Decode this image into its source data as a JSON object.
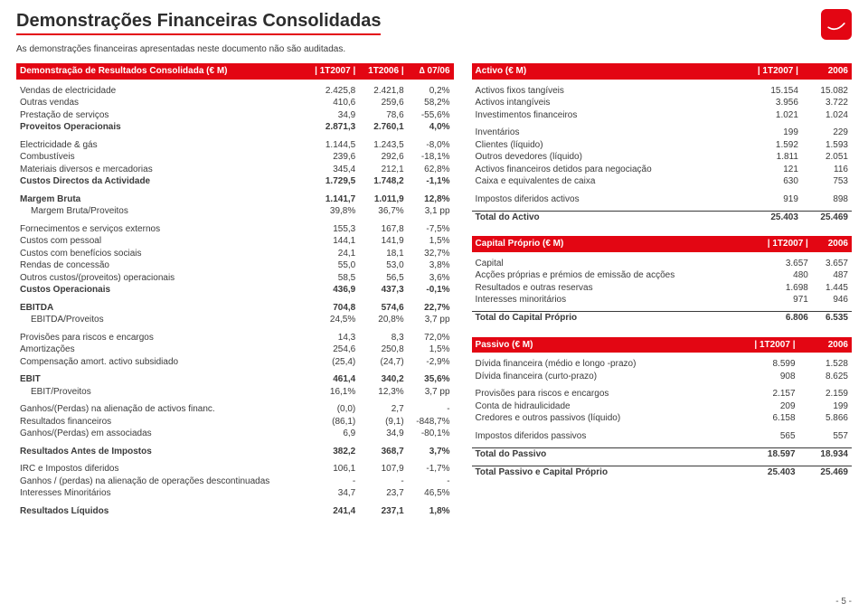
{
  "page": {
    "title": "Demonstrações Financeiras Consolidadas",
    "subtitle": "As demonstrações financeiras apresentadas neste documento não são auditadas.",
    "footer": "- 5 -"
  },
  "left": {
    "header": {
      "label": "Demonstração de Resultados Consolidada (€ M)",
      "c1": "1T2007",
      "c2": "1T2006",
      "c3": "∆ 07/06"
    },
    "rows": [
      {
        "t": "spacer"
      },
      {
        "l": "Vendas de electricidade",
        "a": "2.425,8",
        "b": "2.421,8",
        "c": "0,2%"
      },
      {
        "l": "Outras vendas",
        "a": "410,6",
        "b": "259,6",
        "c": "58,2%"
      },
      {
        "l": "Prestação de serviços",
        "a": "34,9",
        "b": "78,6",
        "c": "-55,6%"
      },
      {
        "l": "Proveitos Operacionais",
        "a": "2.871,3",
        "b": "2.760,1",
        "c": "4,0%",
        "bold": true
      },
      {
        "t": "spacer"
      },
      {
        "l": "Electricidade & gás",
        "a": "1.144,5",
        "b": "1.243,5",
        "c": "-8,0%"
      },
      {
        "l": "Combustíveis",
        "a": "239,6",
        "b": "292,6",
        "c": "-18,1%"
      },
      {
        "l": "Materiais diversos e mercadorias",
        "a": "345,4",
        "b": "212,1",
        "c": "62,8%"
      },
      {
        "l": "Custos Directos da Actividade",
        "a": "1.729,5",
        "b": "1.748,2",
        "c": "-1,1%",
        "bold": true
      },
      {
        "t": "spacer"
      },
      {
        "l": "Margem Bruta",
        "a": "1.141,7",
        "b": "1.011,9",
        "c": "12,8%",
        "bold": true
      },
      {
        "l": "Margem Bruta/Proveitos",
        "a": "39,8%",
        "b": "36,7%",
        "c": "3,1 pp",
        "indent": true
      },
      {
        "t": "spacer"
      },
      {
        "l": "Fornecimentos e serviços externos",
        "a": "155,3",
        "b": "167,8",
        "c": "-7,5%"
      },
      {
        "l": "Custos com pessoal",
        "a": "144,1",
        "b": "141,9",
        "c": "1,5%"
      },
      {
        "l": "Custos com benefícios sociais",
        "a": "24,1",
        "b": "18,1",
        "c": "32,7%"
      },
      {
        "l": "Rendas de concessão",
        "a": "55,0",
        "b": "53,0",
        "c": "3,8%"
      },
      {
        "l": "Outros custos/(proveitos) operacionais",
        "a": "58,5",
        "b": "56,5",
        "c": "3,6%"
      },
      {
        "l": "Custos Operacionais",
        "a": "436,9",
        "b": "437,3",
        "c": "-0,1%",
        "bold": true
      },
      {
        "t": "spacer"
      },
      {
        "l": "EBITDA",
        "a": "704,8",
        "b": "574,6",
        "c": "22,7%",
        "bold": true
      },
      {
        "l": "EBITDA/Proveitos",
        "a": "24,5%",
        "b": "20,8%",
        "c": "3,7 pp",
        "indent": true
      },
      {
        "t": "spacer"
      },
      {
        "l": "Provisões para riscos e encargos",
        "a": "14,3",
        "b": "8,3",
        "c": "72,0%"
      },
      {
        "l": "Amortizações",
        "a": "254,6",
        "b": "250,8",
        "c": "1,5%"
      },
      {
        "l": "Compensação amort. activo subsidiado",
        "a": "(25,4)",
        "b": "(24,7)",
        "c": "-2,9%"
      },
      {
        "t": "spacer"
      },
      {
        "l": "EBIT",
        "a": "461,4",
        "b": "340,2",
        "c": "35,6%",
        "bold": true
      },
      {
        "l": "EBIT/Proveitos",
        "a": "16,1%",
        "b": "12,3%",
        "c": "3,7 pp",
        "indent": true
      },
      {
        "t": "spacer"
      },
      {
        "l": "Ganhos/(Perdas) na alienação de activos financ.",
        "a": "(0,0)",
        "b": "2,7",
        "c": "-"
      },
      {
        "l": "Resultados financeiros",
        "a": "(86,1)",
        "b": "(9,1)",
        "c": "-848,7%"
      },
      {
        "l": "Ganhos/(Perdas) em associadas",
        "a": "6,9",
        "b": "34,9",
        "c": "-80,1%"
      },
      {
        "t": "spacer"
      },
      {
        "l": "Resultados Antes de Impostos",
        "a": "382,2",
        "b": "368,7",
        "c": "3,7%",
        "bold": true
      },
      {
        "t": "spacer"
      },
      {
        "l": "IRC e Impostos diferidos",
        "a": "106,1",
        "b": "107,9",
        "c": "-1,7%"
      },
      {
        "l": "Ganhos / (perdas) na alienação de operações descontinuadas",
        "a": "-",
        "b": "-",
        "c": "-"
      },
      {
        "l": "Interesses Minoritários",
        "a": "34,7",
        "b": "23,7",
        "c": "46,5%"
      },
      {
        "t": "spacer"
      },
      {
        "l": "Resultados Líquidos",
        "a": "241,4",
        "b": "237,1",
        "c": "1,8%",
        "bold": true
      }
    ]
  },
  "right": {
    "blocks": [
      {
        "header": {
          "label": "Activo (€ M)",
          "c1": "1T2007",
          "c2": "2006"
        },
        "rows": [
          {
            "t": "spacer"
          },
          {
            "l": "Activos fixos tangíveis",
            "a": "15.154",
            "b": "15.082"
          },
          {
            "l": "Activos intangíveis",
            "a": "3.956",
            "b": "3.722"
          },
          {
            "l": "Investimentos financeiros",
            "a": "1.021",
            "b": "1.024"
          },
          {
            "t": "spacer"
          },
          {
            "l": "Inventários",
            "a": "199",
            "b": "229"
          },
          {
            "l": "Clientes (líquido)",
            "a": "1.592",
            "b": "1.593"
          },
          {
            "l": "Outros devedores (líquido)",
            "a": "1.811",
            "b": "2.051"
          },
          {
            "l": "Activos financeiros detidos para negociação",
            "a": "121",
            "b": "116"
          },
          {
            "l": "Caixa e equivalentes de caixa",
            "a": "630",
            "b": "753"
          },
          {
            "t": "spacer"
          },
          {
            "l": "Impostos diferidos activos",
            "a": "919",
            "b": "898"
          },
          {
            "t": "spacer"
          },
          {
            "l": "Total do Activo",
            "a": "25.403",
            "b": "25.469",
            "tot": true
          }
        ]
      },
      {
        "header": {
          "label": "Capital Próprio (€ M)",
          "c1": "1T2007",
          "c2": "2006"
        },
        "rows": [
          {
            "t": "spacer"
          },
          {
            "l": "Capital",
            "a": "3.657",
            "b": "3.657"
          },
          {
            "l": "Acções próprias e prémios de emissão de acções",
            "a": "480",
            "b": "487"
          },
          {
            "l": "Resultados e outras reservas",
            "a": "1.698",
            "b": "1.445"
          },
          {
            "l": "Interesses minoritários",
            "a": "971",
            "b": "946"
          },
          {
            "t": "spacer"
          },
          {
            "l": "Total do Capital Próprio",
            "a": "6.806",
            "b": "6.535",
            "tot": true
          }
        ]
      },
      {
        "header": {
          "label": "Passivo (€ M)",
          "c1": "1T2007",
          "c2": "2006"
        },
        "rows": [
          {
            "t": "spacer"
          },
          {
            "l": "Dívida financeira (médio e longo -prazo)",
            "a": "8.599",
            "b": "1.528"
          },
          {
            "l": "Dívida financeira (curto-prazo)",
            "a": "908",
            "b": "8.625"
          },
          {
            "t": "spacer"
          },
          {
            "l": "Provisões para riscos e encargos",
            "a": "2.157",
            "b": "2.159"
          },
          {
            "l": "Conta de hidraulicidade",
            "a": "209",
            "b": "199"
          },
          {
            "l": "Credores e outros passivos (líquido)",
            "a": "6.158",
            "b": "5.866"
          },
          {
            "t": "spacer"
          },
          {
            "l": "Impostos diferidos passivos",
            "a": "565",
            "b": "557"
          },
          {
            "t": "spacer"
          },
          {
            "l": "Total do Passivo",
            "a": "18.597",
            "b": "18.934",
            "tot": true
          },
          {
            "t": "spacer"
          },
          {
            "l": "Total Passivo e Capital Próprio",
            "a": "25.403",
            "b": "25.469",
            "tot": true
          }
        ]
      }
    ]
  }
}
